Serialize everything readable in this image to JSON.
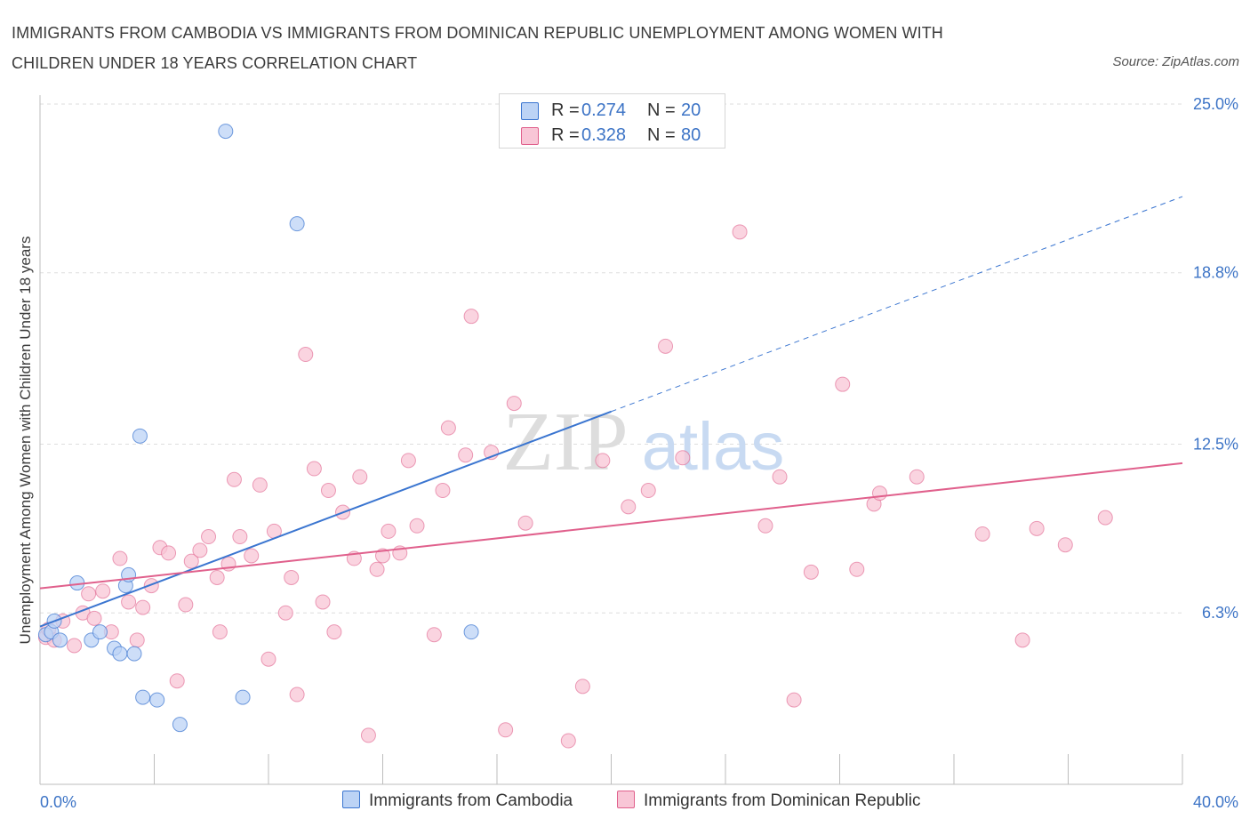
{
  "title": "IMMIGRANTS FROM CAMBODIA VS IMMIGRANTS FROM DOMINICAN REPUBLIC UNEMPLOYMENT AMONG WOMEN WITH CHILDREN UNDER 18 YEARS CORRELATION CHART",
  "source": "Source: ZipAtlas.com",
  "watermark": {
    "zip": "ZIP",
    "atlas": "atlas"
  },
  "colors": {
    "cambodia": "#3a75d0",
    "cambodia_fill": "#bcd3f5",
    "dominican": "#e0608c",
    "dominican_fill": "#f8c6d6",
    "axis_text": "#3d74c6",
    "grid": "#dedede"
  },
  "legend": {
    "rows": [
      {
        "r_label": "R =",
        "r_value": "0.274",
        "n_label": "N =",
        "n_value": "20"
      },
      {
        "r_label": "R =",
        "r_value": "0.328",
        "n_label": "N =",
        "n_value": "80"
      }
    ]
  },
  "chart_data": {
    "type": "scatter",
    "title": "IMMIGRANTS FROM CAMBODIA VS IMMIGRANTS FROM DOMINICAN REPUBLIC UNEMPLOYMENT AMONG WOMEN WITH CHILDREN UNDER 18 YEARS CORRELATION CHART",
    "xlabel": "",
    "ylabel": "Unemployment Among Women with Children Under 18 years",
    "xlim": [
      0,
      40
    ],
    "ylim": [
      0,
      25
    ],
    "x_ticks": [
      0,
      4,
      8,
      12,
      16,
      20,
      24,
      28,
      32,
      36,
      40
    ],
    "x_tick_labels": [
      "0.0%",
      "40.0%"
    ],
    "y_ticks": [
      6.3,
      12.5,
      18.8,
      25.0
    ],
    "y_tick_labels": [
      "6.3%",
      "12.5%",
      "18.8%",
      "25.0%"
    ],
    "grid": true,
    "legend_position": "top-center",
    "series": [
      {
        "name": "Immigrants from Cambodia",
        "color": "#3a75d0",
        "points": [
          [
            0.2,
            5.5
          ],
          [
            0.4,
            5.6
          ],
          [
            0.5,
            6.0
          ],
          [
            0.7,
            5.3
          ],
          [
            1.3,
            7.4
          ],
          [
            1.8,
            5.3
          ],
          [
            2.1,
            5.6
          ],
          [
            2.6,
            5.0
          ],
          [
            2.8,
            4.8
          ],
          [
            3.0,
            7.3
          ],
          [
            3.1,
            7.7
          ],
          [
            3.3,
            4.8
          ],
          [
            3.5,
            12.8
          ],
          [
            3.6,
            3.2
          ],
          [
            4.1,
            3.1
          ],
          [
            4.9,
            2.2
          ],
          [
            6.5,
            24.0
          ],
          [
            7.1,
            3.2
          ],
          [
            9.0,
            20.6
          ],
          [
            15.1,
            5.6
          ]
        ],
        "trend": {
          "x0": 0,
          "y0": 5.8,
          "x1": 20,
          "y1": 13.7,
          "dash_to_x": 40,
          "dash_to_y": 21.6
        }
      },
      {
        "name": "Immigrants from Dominican Republic",
        "color": "#e0608c",
        "points": [
          [
            0.2,
            5.4
          ],
          [
            0.3,
            5.7
          ],
          [
            0.5,
            5.3
          ],
          [
            0.8,
            6.0
          ],
          [
            1.2,
            5.1
          ],
          [
            1.5,
            6.3
          ],
          [
            1.7,
            7.0
          ],
          [
            1.9,
            6.1
          ],
          [
            2.2,
            7.1
          ],
          [
            2.5,
            5.6
          ],
          [
            2.8,
            8.3
          ],
          [
            3.1,
            6.7
          ],
          [
            3.4,
            5.3
          ],
          [
            3.6,
            6.5
          ],
          [
            3.9,
            7.3
          ],
          [
            4.2,
            8.7
          ],
          [
            4.5,
            8.5
          ],
          [
            4.8,
            3.8
          ],
          [
            5.1,
            6.6
          ],
          [
            5.3,
            8.2
          ],
          [
            5.6,
            8.6
          ],
          [
            5.9,
            9.1
          ],
          [
            6.2,
            7.6
          ],
          [
            6.3,
            5.6
          ],
          [
            6.6,
            8.1
          ],
          [
            6.8,
            11.2
          ],
          [
            7.0,
            9.1
          ],
          [
            7.4,
            8.4
          ],
          [
            7.7,
            11.0
          ],
          [
            8.0,
            4.6
          ],
          [
            8.2,
            9.3
          ],
          [
            8.6,
            6.3
          ],
          [
            8.8,
            7.6
          ],
          [
            9.0,
            3.3
          ],
          [
            9.3,
            15.8
          ],
          [
            9.6,
            11.6
          ],
          [
            9.9,
            6.7
          ],
          [
            10.1,
            10.8
          ],
          [
            10.3,
            5.6
          ],
          [
            10.6,
            10.0
          ],
          [
            11.0,
            8.3
          ],
          [
            11.2,
            11.3
          ],
          [
            11.5,
            1.8
          ],
          [
            11.8,
            7.9
          ],
          [
            12.0,
            8.4
          ],
          [
            12.2,
            9.3
          ],
          [
            12.6,
            8.5
          ],
          [
            12.9,
            11.9
          ],
          [
            13.2,
            9.5
          ],
          [
            13.8,
            5.5
          ],
          [
            14.1,
            10.8
          ],
          [
            14.3,
            13.1
          ],
          [
            14.9,
            12.1
          ],
          [
            15.1,
            17.2
          ],
          [
            15.8,
            12.2
          ],
          [
            16.3,
            2.0
          ],
          [
            16.6,
            14.0
          ],
          [
            17.0,
            9.6
          ],
          [
            18.5,
            1.6
          ],
          [
            19.0,
            3.6
          ],
          [
            19.7,
            11.9
          ],
          [
            20.6,
            10.2
          ],
          [
            21.3,
            10.8
          ],
          [
            21.9,
            16.1
          ],
          [
            22.5,
            12.0
          ],
          [
            24.5,
            20.3
          ],
          [
            25.4,
            9.5
          ],
          [
            25.9,
            11.3
          ],
          [
            26.4,
            3.1
          ],
          [
            27.0,
            7.8
          ],
          [
            28.1,
            14.7
          ],
          [
            28.6,
            7.9
          ],
          [
            29.2,
            10.3
          ],
          [
            29.4,
            10.7
          ],
          [
            30.7,
            11.3
          ],
          [
            33.0,
            9.2
          ],
          [
            34.4,
            5.3
          ],
          [
            34.9,
            9.4
          ],
          [
            35.9,
            8.8
          ],
          [
            37.3,
            9.8
          ]
        ],
        "trend": {
          "x0": 0,
          "y0": 7.2,
          "x1": 40,
          "y1": 11.8
        }
      }
    ]
  }
}
